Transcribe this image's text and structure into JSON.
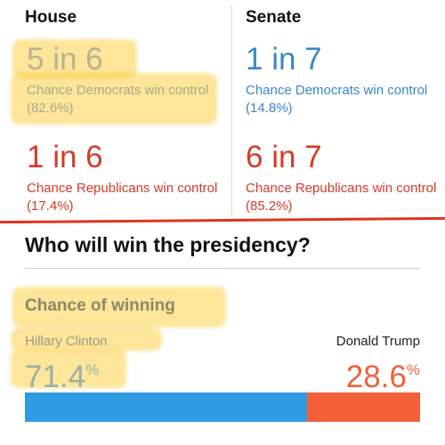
{
  "house": {
    "title": "House",
    "dem_odds": "5 in 6",
    "dem_text": "Chance Democrats win control (82.6%)",
    "rep_odds": "1 in 6",
    "rep_text": "Chance Republicans win control (17.4%)"
  },
  "senate": {
    "title": "Senate",
    "dem_odds": "1 in 7",
    "dem_text": "Chance Democrats win control (14.8%)",
    "rep_odds": "6 in 7",
    "rep_text": "Chance Republicans win control (85.2%)"
  },
  "presidency": {
    "title": "Who will win the presidency?",
    "chance_label": "Chance of winning",
    "clinton": {
      "name": "Hillary Clinton",
      "value": "71.4",
      "pct_sign": "%",
      "share": 71.4
    },
    "trump": {
      "name": "Donald Trump",
      "value": "28.6",
      "pct_sign": "%",
      "share": 28.6
    }
  },
  "colors": {
    "dem": "#2f9be2",
    "rep": "#f2603a",
    "highlight": "#fccf46",
    "divider_red": "#e2321f"
  }
}
